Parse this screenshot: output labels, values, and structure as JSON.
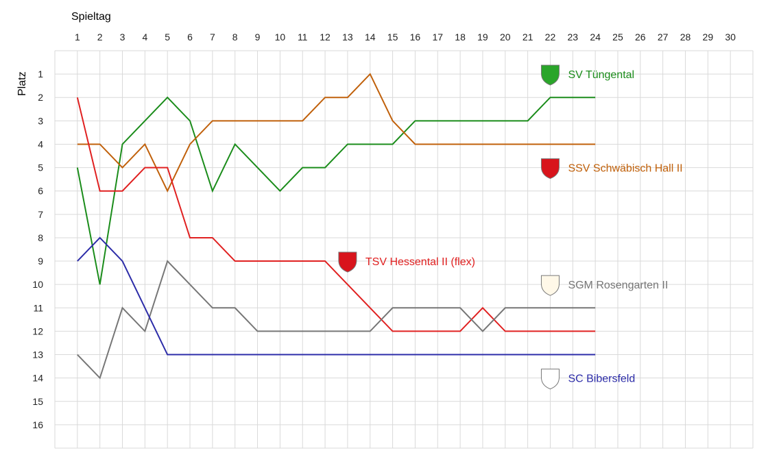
{
  "chart_data": {
    "type": "line",
    "title": "",
    "xlabel": "Spieltag",
    "ylabel": "Platz",
    "x_ticks": [
      1,
      2,
      3,
      4,
      5,
      6,
      7,
      8,
      9,
      10,
      11,
      12,
      13,
      14,
      15,
      16,
      17,
      18,
      19,
      20,
      21,
      22,
      23,
      24,
      25,
      26,
      27,
      28,
      29,
      30
    ],
    "y_ticks": [
      1,
      2,
      3,
      4,
      5,
      6,
      7,
      8,
      9,
      10,
      11,
      12,
      13,
      14,
      15,
      16
    ],
    "xlim": [
      0,
      31
    ],
    "ylim": [
      0,
      17
    ],
    "y_inverted": true,
    "grid": true,
    "series": [
      {
        "name": "SV Tüngental",
        "color": "#1a8c1a",
        "label_at": 1,
        "logo": "shield-green-white",
        "values": [
          5,
          10,
          4,
          3,
          2,
          3,
          6,
          4,
          5,
          6,
          5,
          5,
          4,
          4,
          4,
          3,
          3,
          3,
          3,
          3,
          3,
          2,
          2,
          2
        ]
      },
      {
        "name": "SSV Schwäbisch Hall II",
        "color": "#c0600a",
        "label_at": 5,
        "logo": "shield-red-ssv",
        "values": [
          4,
          4,
          5,
          4,
          6,
          4,
          3,
          3,
          3,
          3,
          3,
          2,
          2,
          1,
          3,
          4,
          4,
          4,
          4,
          4,
          4,
          4,
          4,
          4
        ]
      },
      {
        "name": "TSV Hessental II (flex)",
        "color": "#e02020",
        "label_at": 9,
        "label_md": 13,
        "logo": "shield-red-tsv",
        "values": [
          2,
          6,
          6,
          5,
          5,
          8,
          8,
          9,
          9,
          9,
          9,
          9,
          10,
          11,
          12,
          12,
          12,
          12,
          11,
          12,
          12,
          12,
          12,
          12
        ]
      },
      {
        "name": "SGM Rosengarten II",
        "color": "#767676",
        "label_at": 10,
        "logo": "shield-sgm",
        "values": [
          13,
          14,
          11,
          12,
          9,
          10,
          11,
          11,
          12,
          12,
          12,
          12,
          12,
          12,
          11,
          11,
          11,
          11,
          12,
          11,
          11,
          11,
          11,
          11
        ]
      },
      {
        "name": "SC Bibersfeld",
        "color": "#2c2ca8",
        "label_at": 14,
        "logo": "shield-blue-white",
        "values": [
          9,
          8,
          9,
          11,
          13,
          13,
          13,
          13,
          13,
          13,
          13,
          13,
          13,
          13,
          13,
          13,
          13,
          13,
          13,
          13,
          13,
          13,
          13,
          13
        ]
      }
    ]
  }
}
